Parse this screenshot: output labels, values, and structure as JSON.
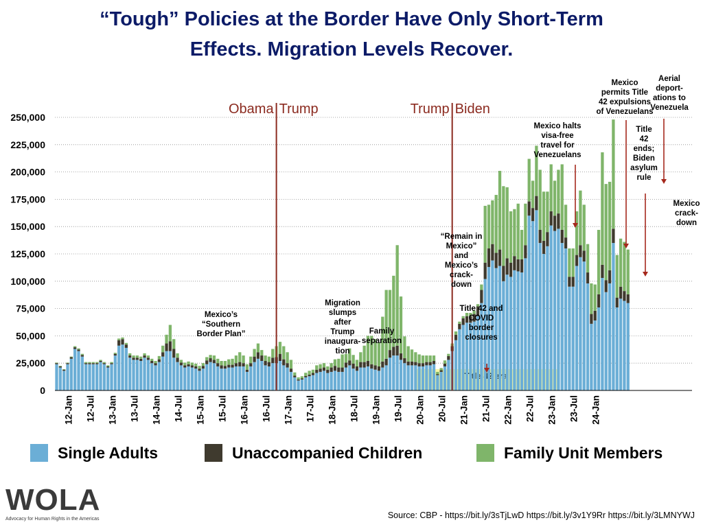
{
  "title_line1": "“Tough” Policies at the Border Have Only Short-Term",
  "title_line2": "Effects. Migration Levels Recover.",
  "legend": [
    {
      "label": "Single Adults",
      "color": "#6baed6"
    },
    {
      "label": "Unaccompanied Children",
      "color": "#3f3a2e"
    },
    {
      "label": "Family Unit Members",
      "color": "#7fb56a"
    }
  ],
  "logo": {
    "name": "WOLA",
    "tagline": "Advocacy for Human Rights in the Americas"
  },
  "source": "Source: CBP - https://bit.ly/3sTjLwD https://bit.ly/3v1Y9Rr https://bit.ly/3LMNYWJ",
  "chart_data": {
    "type": "bar",
    "stacked": true,
    "ylim": [
      0,
      250000
    ],
    "yticks": [
      0,
      25000,
      50000,
      75000,
      100000,
      125000,
      150000,
      175000,
      200000,
      225000,
      250000
    ],
    "ytick_labels": [
      "0",
      "25,000",
      "50,000",
      "75,000",
      "100,000",
      "125,000",
      "150,000",
      "175,000",
      "200,000",
      "225,000",
      "250,000"
    ],
    "grid": true,
    "x_start": "2012-01",
    "x_end": "2024-04",
    "xtick_labels": [
      "12-Jan",
      "12-Jul",
      "13-Jan",
      "13-Jul",
      "14-Jan",
      "14-Jul",
      "15-Jan",
      "15-Jul",
      "16-Jan",
      "16-Jul",
      "17-Jan",
      "17-Jul",
      "18-Jan",
      "18-Jul",
      "19-Jan",
      "19-Jul",
      "20-Jan",
      "20-Jul",
      "21-Jan",
      "21-Jul",
      "22-Jan",
      "22-Jul",
      "23-Jan",
      "23-Jul",
      "24-Jan"
    ],
    "colors": {
      "Single Adults": "#6baed6",
      "Unaccompanied Children": "#3f3a2e",
      "Family Unit Members": "#7fb56a"
    },
    "series": [
      {
        "name": "Single Adults",
        "values": [
          24000,
          21000,
          18000,
          24000,
          29000,
          38000,
          36000,
          31000,
          24000,
          24000,
          24000,
          24000,
          26000,
          24000,
          21000,
          24000,
          32000,
          41000,
          42000,
          39000,
          30000,
          28000,
          28000,
          27000,
          30000,
          28000,
          25000,
          23000,
          26000,
          31000,
          36000,
          36000,
          30000,
          26000,
          23000,
          21000,
          22000,
          21000,
          20000,
          18000,
          20000,
          24000,
          26000,
          25000,
          22000,
          20000,
          20000,
          21000,
          21000,
          22000,
          22000,
          22000,
          17000,
          22000,
          26000,
          29000,
          27000,
          23000,
          22000,
          25000,
          25000,
          27000,
          23000,
          21000,
          17000,
          12000,
          9000,
          10000,
          12000,
          13000,
          14000,
          16000,
          17000,
          18000,
          16000,
          17000,
          18000,
          17000,
          17000,
          21000,
          23000,
          20000,
          18000,
          21000,
          21000,
          22000,
          20000,
          19000,
          18000,
          21000,
          23000,
          30000,
          32000,
          32000,
          28000,
          25000,
          23000,
          23000,
          23000,
          22000,
          22000,
          23000,
          23000,
          24000,
          14000,
          17000,
          22000,
          28000,
          36000,
          46000,
          56000,
          60000,
          62000,
          62000,
          63000,
          68000,
          80000,
          102000,
          113000,
          119000,
          112000,
          114000,
          100000,
          106000,
          104000,
          110000,
          109000,
          108000,
          121000,
          160000,
          155000,
          165000,
          135000,
          125000,
          132000,
          151000,
          146000,
          148000,
          135000,
          130000,
          95000,
          95000,
          114000,
          122000,
          118000,
          98000,
          61000,
          64000,
          76000,
          103000,
          90000,
          98000,
          135000,
          76000,
          84000,
          82000,
          80000
        ]
      },
      {
        "name": "Unaccompanied Children",
        "values": [
          1000,
          1000,
          1000,
          1000,
          1500,
          1500,
          1500,
          1500,
          1000,
          1000,
          1000,
          1000,
          1000,
          1000,
          1000,
          1000,
          1500,
          5000,
          5000,
          3000,
          2000,
          2000,
          2000,
          2000,
          2000,
          2000,
          2000,
          2000,
          2500,
          4000,
          7000,
          9000,
          8000,
          4000,
          2500,
          2000,
          2000,
          2000,
          2000,
          2000,
          2500,
          3500,
          3500,
          3000,
          3000,
          3000,
          2500,
          2500,
          2500,
          3000,
          4000,
          3000,
          2000,
          3000,
          5000,
          6000,
          5000,
          4000,
          4000,
          5000,
          5500,
          6500,
          5500,
          4000,
          3000,
          1500,
          1000,
          1000,
          1200,
          1500,
          2000,
          3000,
          3000,
          3000,
          3000,
          4000,
          4500,
          4000,
          4000,
          4500,
          4500,
          4500,
          4000,
          5000,
          5000,
          5000,
          4000,
          4000,
          4000,
          5500,
          6000,
          7000,
          8000,
          9000,
          6000,
          4500,
          3500,
          3500,
          3000,
          3000,
          3000,
          3000,
          3000,
          3000,
          1000,
          1500,
          2500,
          3500,
          4500,
          5000,
          5000,
          6000,
          6000,
          6000,
          7000,
          9000,
          12000,
          15000,
          17000,
          15000,
          14000,
          15000,
          14000,
          15000,
          13000,
          13000,
          11000,
          12000,
          12000,
          13000,
          12000,
          13000,
          12000,
          12000,
          13000,
          13000,
          14000,
          14000,
          12000,
          10000,
          9000,
          9000,
          10000,
          11000,
          10000,
          10000,
          9000,
          9000,
          12000,
          12000,
          11000,
          12000,
          13000,
          9000,
          11000,
          9000,
          8000
        ]
      },
      {
        "name": "Family Unit Members",
        "values": [
          500,
          500,
          500,
          500,
          500,
          1000,
          1000,
          1000,
          1000,
          1000,
          1000,
          1000,
          1000,
          1000,
          1000,
          1000,
          1000,
          1500,
          1500,
          1500,
          2000,
          2000,
          2000,
          2000,
          2000,
          2000,
          2000,
          2000,
          3000,
          6000,
          8000,
          15000,
          9000,
          4000,
          2500,
          2500,
          2500,
          2500,
          2500,
          2500,
          2500,
          3000,
          3000,
          4000,
          4000,
          4000,
          4500,
          5000,
          5500,
          7000,
          9000,
          7000,
          5000,
          6000,
          7000,
          8000,
          5000,
          5000,
          5000,
          8000,
          10000,
          11000,
          12000,
          10000,
          8000,
          3000,
          2000,
          2000,
          3000,
          3500,
          3000,
          4000,
          4000,
          4000,
          3000,
          4000,
          6000,
          8000,
          12000,
          8000,
          11000,
          8000,
          6000,
          9000,
          15000,
          23000,
          26000,
          24000,
          22000,
          41000,
          63000,
          55000,
          65000,
          92000,
          52000,
          20000,
          14000,
          11000,
          9000,
          8000,
          7000,
          6000,
          6000,
          5000,
          2000,
          2000,
          3000,
          2000,
          2500,
          3000,
          2000,
          2000,
          3000,
          3000,
          3000,
          2000,
          5000,
          52000,
          40000,
          40000,
          53000,
          72000,
          73000,
          65000,
          47000,
          43000,
          51000,
          27000,
          38000,
          39000,
          25000,
          46000,
          55000,
          45000,
          37000,
          43000,
          32000,
          40000,
          60000,
          30000,
          26000,
          26000,
          40000,
          50000,
          42000,
          26000,
          28000,
          24000,
          59000,
          103000,
          88000,
          81000,
          100000,
          39000,
          44000,
          45000,
          41000
        ]
      }
    ],
    "policy_lines": [
      {
        "date": "2017-01",
        "left_label": "Obama",
        "right_label": "Trump"
      },
      {
        "date": "2021-01",
        "left_label": "Trump",
        "right_label": "Biden"
      }
    ],
    "shaded_period": {
      "start": "2020-03",
      "end": "2023-05",
      "label": "Title 42 era"
    },
    "annotations": [
      {
        "lines": [
          "Mexico’s",
          "“Southern",
          "Border Plan”"
        ]
      },
      {
        "lines": [
          "Migration",
          "slumps",
          "after",
          "Trump",
          "inaugura-",
          "tion"
        ]
      },
      {
        "lines": [
          "Family",
          "separation"
        ]
      },
      {
        "lines": [
          "“Remain in",
          "Mexico”",
          "and",
          "Mexico’s",
          "crack-",
          "down"
        ]
      },
      {
        "lines": [
          "Title 42 and",
          "COVID",
          "border",
          "closures"
        ]
      },
      {
        "lines": [
          "Mexico halts",
          "visa-free",
          "travel for",
          "Venezuelans"
        ]
      },
      {
        "lines": [
          "Mexico",
          "permits Title",
          "42 expulsions",
          "of Venezuelans"
        ]
      },
      {
        "lines": [
          "Title",
          "42",
          "ends;",
          "Biden",
          "asylum",
          "rule"
        ]
      },
      {
        "lines": [
          "Aerial",
          "deport-",
          "ations to",
          "Venezuela"
        ]
      },
      {
        "lines": [
          "Mexico",
          "crack-",
          "down"
        ]
      }
    ]
  }
}
